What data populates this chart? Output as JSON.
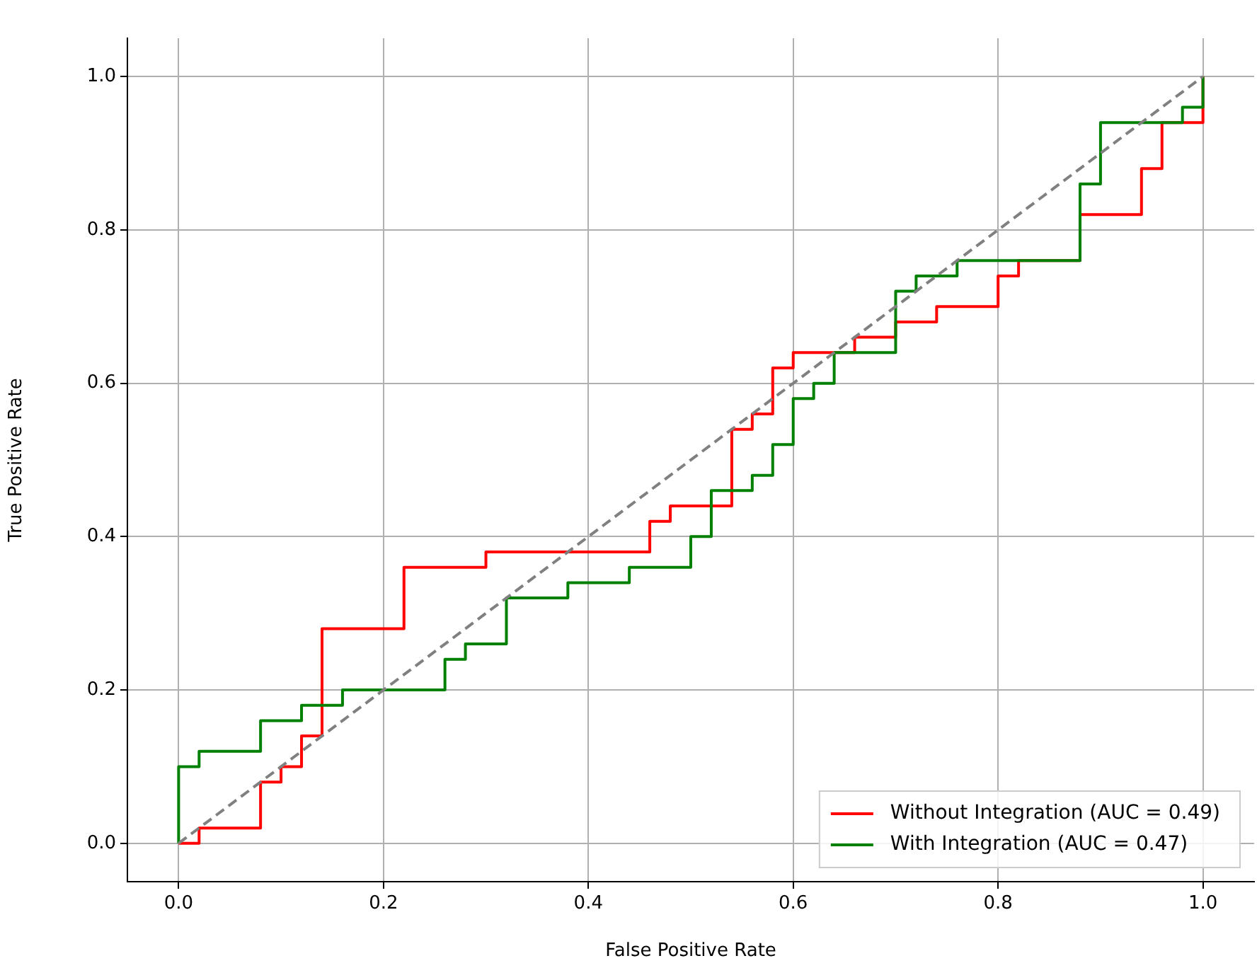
{
  "chart_data": {
    "type": "step",
    "xlabel": "False Positive Rate",
    "ylabel": "True Positive Rate",
    "xlim": [
      -0.05,
      1.05
    ],
    "ylim": [
      -0.05,
      1.05
    ],
    "xticks": [
      {
        "value": 0,
        "label": "0.0"
      },
      {
        "value": 0.2,
        "label": "0.2"
      },
      {
        "value": 0.4,
        "label": "0.4"
      },
      {
        "value": 0.6,
        "label": "0.6"
      },
      {
        "value": 0.8,
        "label": "0.8"
      },
      {
        "value": 1,
        "label": "1.0"
      }
    ],
    "yticks": [
      {
        "value": 0,
        "label": "0.0"
      },
      {
        "value": 0.2,
        "label": "0.2"
      },
      {
        "value": 0.4,
        "label": "0.4"
      },
      {
        "value": 0.6,
        "label": "0.6"
      },
      {
        "value": 0.8,
        "label": "0.8"
      },
      {
        "value": 1,
        "label": "1.0"
      }
    ],
    "grid": true,
    "legend": "bottom right",
    "marker": "none",
    "series": [
      {
        "name": "Without Integration (AUC = 0.49)",
        "color": "#ff0000",
        "x": [
          0,
          0.02,
          0.08,
          0.1,
          0.12,
          0.14,
          0.22,
          0.3,
          0.46,
          0.48,
          0.54,
          0.56,
          0.58,
          0.6,
          0.66,
          0.7,
          0.74,
          0.8,
          0.82,
          0.88,
          0.94,
          0.96,
          1.0
        ],
        "values": [
          0,
          0.02,
          0.08,
          0.1,
          0.14,
          0.28,
          0.36,
          0.38,
          0.42,
          0.44,
          0.54,
          0.56,
          0.62,
          0.64,
          0.66,
          0.68,
          0.7,
          0.74,
          0.76,
          0.82,
          0.88,
          0.94,
          1.0
        ]
      },
      {
        "name": "With Integration (AUC = 0.47)",
        "color": "#008000",
        "x": [
          0,
          0,
          0.02,
          0.08,
          0.12,
          0.16,
          0.26,
          0.28,
          0.32,
          0.38,
          0.44,
          0.5,
          0.52,
          0.56,
          0.58,
          0.6,
          0.62,
          0.64,
          0.7,
          0.72,
          0.76,
          0.88,
          0.9,
          0.98,
          1.0
        ],
        "values": [
          0,
          0.1,
          0.12,
          0.16,
          0.18,
          0.2,
          0.24,
          0.26,
          0.32,
          0.34,
          0.36,
          0.4,
          0.46,
          0.48,
          0.52,
          0.58,
          0.6,
          0.64,
          0.72,
          0.74,
          0.76,
          0.86,
          0.94,
          0.96,
          1.0
        ]
      },
      {
        "type": "line",
        "color": "#808080",
        "line_style": "dashed",
        "x": [
          0,
          1
        ],
        "values": [
          0,
          1
        ]
      }
    ]
  }
}
